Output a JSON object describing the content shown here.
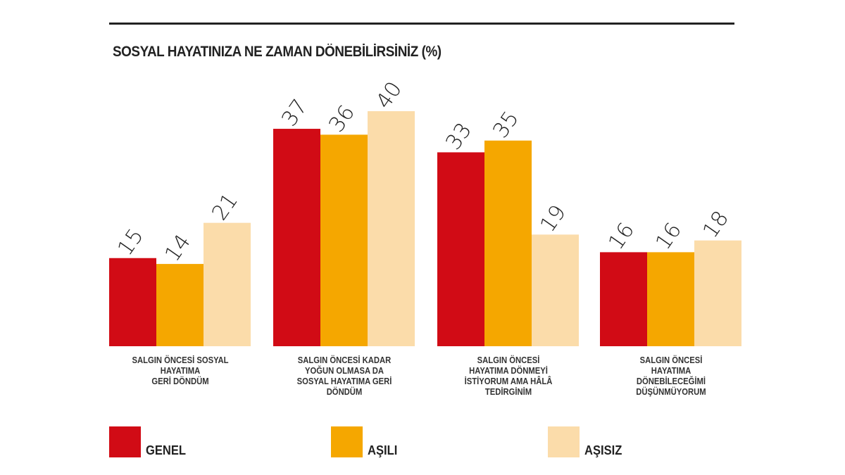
{
  "title": "SOSYAL HAYATINIZA NE ZAMAN DÖNEBİLİRSİNİZ (%)",
  "chart_data": {
    "type": "bar",
    "title": "SOSYAL HAYATINIZA NE ZAMAN DÖNEBİLİRSİNİZ (%)",
    "categories": [
      "SALGIN ÖNCESİ SOSYAL HAYATIMA GERİ DÖNDÜM",
      "SALGIN ÖNCESİ KADAR YOĞUN OLMASA DA SOSYAL HAYATIMA GERİ DÖNDÜM",
      "SALGIN ÖNCESİ HAYATIMA DÖNMEYİ İSTİYORUM AMA HÂLÂ TEDİRGİNİM",
      "SALGIN ÖNCESİ HAYATIMA DÖNEBİLECEĞİMİ DÜŞÜNMÜYORUM"
    ],
    "category_lines": [
      [
        "SALGIN ÖNCESİ SOSYAL",
        "HAYATIMA",
        "GERİ DÖNDÜM"
      ],
      [
        "SALGIN ÖNCESİ KADAR",
        "YOĞUN OLMASA DA",
        "SOSYAL HAYATIMA GERİ",
        "DÖNDÜM"
      ],
      [
        "SALGIN ÖNCESİ",
        "HAYATIMA DÖNMEYİ",
        "İSTİYORUM AMA HÂLÂ",
        "TEDİRGİNİM"
      ],
      [
        "SALGIN ÖNCESİ",
        "HAYATIMA",
        "DÖNEBİLECEĞİMİ",
        "DÜŞÜNMÜYORUM"
      ]
    ],
    "series": [
      {
        "name": "GENEL",
        "color": "#d10b15",
        "values": [
          15,
          37,
          33,
          16
        ]
      },
      {
        "name": "AŞILI",
        "color": "#f5a700",
        "values": [
          14,
          36,
          35,
          16
        ]
      },
      {
        "name": "AŞISIZ",
        "color": "#fbdcaa",
        "values": [
          21,
          40,
          19,
          18
        ]
      }
    ],
    "ylim": [
      0,
      40
    ],
    "grid": false,
    "legend": "bottom"
  }
}
